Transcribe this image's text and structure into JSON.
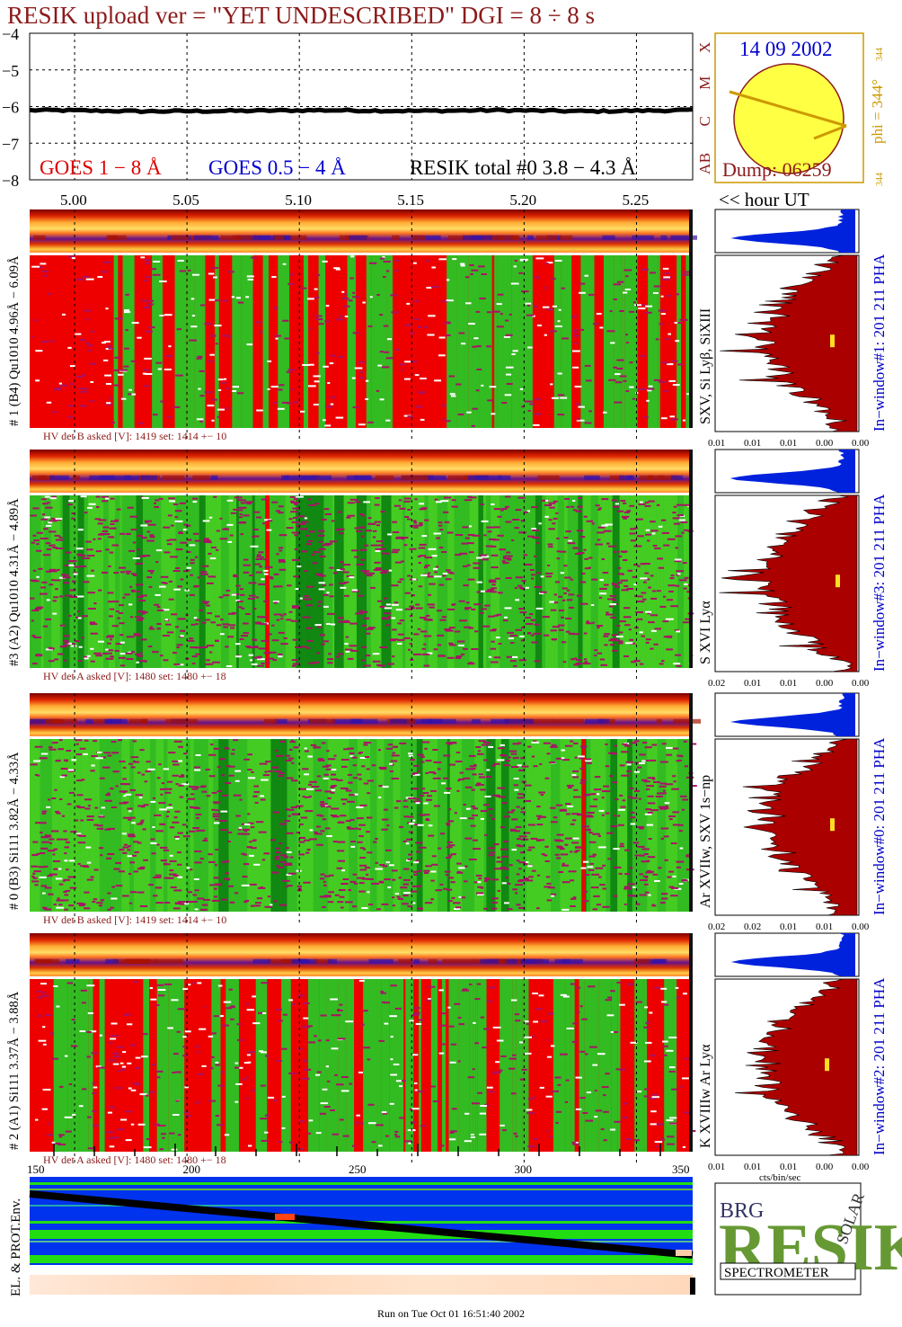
{
  "title": "RESIK upload ver = \"YET UNDESCRIBED\"  DGI =   8 ÷   8 s",
  "footer": "Run on Tue Oct 01 16:51:40 2002",
  "colors": {
    "title": "#8b1a1a",
    "goes_long": "#dd0000",
    "goes_short": "#0000cc",
    "resik_total": "#000000",
    "pha_top": "#0022dd",
    "pha_main": "#aa0000",
    "spectrum_red": "#ee0000",
    "spectrum_green": "#33bb22",
    "spectrum_magenta": "#aa1166",
    "env_blue": "#0033ee",
    "env_green": "#22dd11",
    "sun": "#ffff44",
    "sun_outline": "#8b1a1a",
    "orbit_line": "#cc9900"
  },
  "goes_panel": {
    "yticks": [
      "−4",
      "−5",
      "−6",
      "−7",
      "−8"
    ],
    "right_labels": [
      "X",
      "M",
      "C",
      "B",
      "A"
    ],
    "legend_goes18": "GOES 1 − 8 Å",
    "legend_goes054": "GOES 0.5 − 4 Å",
    "legend_resik": "RESIK total #0  3.8 − 4.3 Å",
    "xticks": [
      "5.00",
      "5.05",
      "5.10",
      "5.15",
      "5.20",
      "5.25"
    ],
    "hour_label": "<< hour UT"
  },
  "sun_panel": {
    "date": "14 09 2002",
    "phi_label": "phi = 344°",
    "phi_sub": "344",
    "phi_bottom": "344",
    "dump": "Dump: 06259",
    "icon": "sun-position-icon"
  },
  "channels": [
    {
      "left_label": "# 1 (B4) Qu1010 4.96Å − 6.09Å",
      "lines_label": "SXV, Si Lyβ, SiXIII",
      "hv_label": "HV det B asked [V]:  1419 set:  1414 +−   10",
      "pha_label": "In−window#1:  201 211 PHA",
      "pha_xticks": [
        "0.01",
        "0.01",
        "0.01",
        "0.00",
        "0.00"
      ],
      "mode": "red"
    },
    {
      "left_label": "#3 (A2) Qu1010  4.31Å − 4.89Å",
      "lines_label": "S XVI Lyα",
      "hv_label": "HV det A asked [V]:  1480 set:  1480 +−   18",
      "pha_label": "In−window#3:  201 211 PHA",
      "pha_xticks": [
        "0.02",
        "0.01",
        "0.01",
        "0.00",
        "0.00"
      ],
      "mode": "green"
    },
    {
      "left_label": "# 0 (B3) Si111  3.82Å − 4.33Å",
      "lines_label": "Ar XVIIw,  SXV 1s−np",
      "hv_label": "HV det B asked [V]:  1419 set:  1414 +−   10",
      "pha_label": "In−window#0:  201 211 PHA",
      "pha_xticks": [
        "0.02",
        "0.02",
        "0.01",
        "0.01",
        "0.00"
      ],
      "mode": "green"
    },
    {
      "left_label": "# 2 (A1) Si111  3.37Å −  3.88Å",
      "lines_label": "K XVIIIw  Ar Lyα",
      "hv_label": "HV det A asked [V]:  1480 set:  1480 +−   18",
      "pha_label": "In−window#2:  201 211 PHA",
      "pha_xticks": [
        "0.01",
        "0.01",
        "0.01",
        "0.00",
        "0.00"
      ],
      "mode": "red"
    }
  ],
  "pha_xlabel": "cts/bin/sec",
  "env_panel": {
    "label": "EL. & PROT.Env.",
    "xticks": [
      "150",
      "200",
      "250",
      "300",
      "350"
    ]
  },
  "logo": {
    "letters": "RESIK",
    "small_top": "BRG",
    "small_side": "SOLAR",
    "bottom": "SPECTROMETER"
  },
  "chart_data": {
    "type": "line",
    "x_label": "hour UT",
    "x_range": [
      4.98,
      5.275
    ],
    "y_range": [
      -8,
      -4
    ],
    "log_scale": true,
    "grid": true,
    "series": [
      {
        "name": "GOES 1 − 8 Å",
        "x": [
          4.99,
          5.03,
          5.07,
          5.11,
          5.15,
          5.19,
          5.23,
          5.27
        ],
        "values": [
          -6.1,
          -6.13,
          -6.12,
          -6.1,
          -6.12,
          -6.1,
          -6.13,
          -6.1
        ]
      }
    ]
  }
}
